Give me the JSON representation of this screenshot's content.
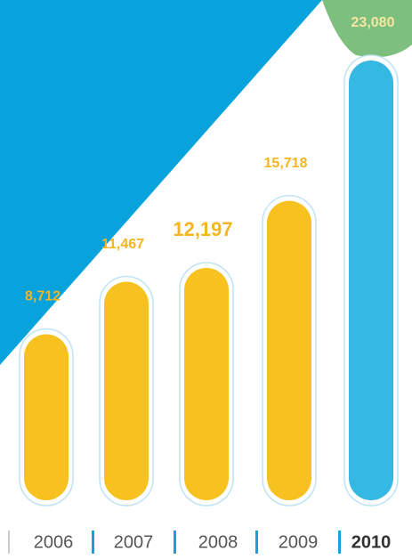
{
  "chart_data": {
    "type": "bar",
    "categories": [
      "2006",
      "2007",
      "2008",
      "2009",
      "2010"
    ],
    "values": [
      8712,
      11467,
      12197,
      15718,
      23080
    ],
    "value_labels": [
      "8,712",
      "11,467",
      "12,197",
      "15,718",
      "23,080"
    ],
    "colors": [
      "#f7c21f",
      "#f7c21f",
      "#f7c21f",
      "#f7c21f",
      "#35b8e2"
    ]
  }
}
